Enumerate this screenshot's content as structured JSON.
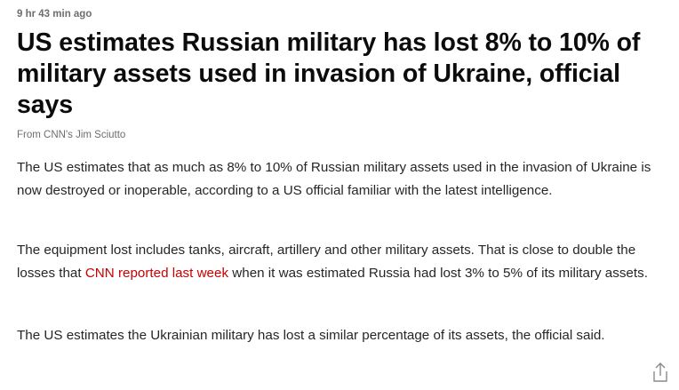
{
  "post": {
    "timestamp": "9 hr 43 min ago",
    "headline": "US estimates Russian military has lost 8% to 10% of military assets used in invasion of Ukraine, official says",
    "byline": "From CNN's Jim Sciutto",
    "paragraph1": "The US estimates that as much as 8% to 10% of Russian military assets used in the invasion of Ukraine is now destroyed or inoperable, according to a US official familiar with the latest intelligence.",
    "paragraph2_before": "The equipment lost includes tanks, aircraft, artillery and other military assets. That is close to double the losses that ",
    "paragraph2_link": "CNN reported last week",
    "paragraph2_after": " when it was estimated Russia had lost 3% to 5% of its military assets.",
    "paragraph3": "The US estimates the Ukrainian military has lost a similar percentage of its assets, the official said.",
    "share_icon": "share-icon",
    "link_color": "#cc0000"
  }
}
